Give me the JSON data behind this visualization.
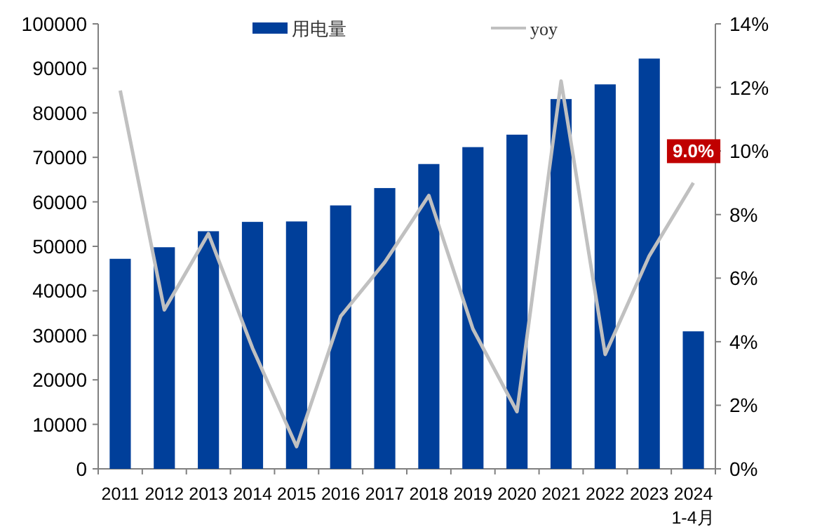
{
  "chart_data": {
    "type": "bar",
    "categories": [
      "2011",
      "2012",
      "2013",
      "2014",
      "2015",
      "2016",
      "2017",
      "2018",
      "2019",
      "2020",
      "2021",
      "2022",
      "2023",
      "2024 1-4月"
    ],
    "series": [
      {
        "name": "用电量",
        "color": "#003f9a",
        "values": [
          47200,
          49800,
          53400,
          55500,
          55600,
          59200,
          63100,
          68500,
          72300,
          75100,
          83100,
          86400,
          92200,
          30900
        ]
      },
      {
        "name": "yoy",
        "type": "line",
        "axis": "y2",
        "color": "#c0c0c0",
        "values": [
          11.9,
          5.0,
          7.4,
          3.8,
          0.7,
          4.8,
          6.5,
          8.6,
          4.4,
          1.8,
          12.2,
          3.6,
          6.7,
          9.0
        ],
        "value_labels": [
          null,
          null,
          null,
          null,
          null,
          null,
          null,
          null,
          null,
          null,
          null,
          null,
          null,
          "9.0%"
        ]
      }
    ],
    "ylim": [
      0,
      100000
    ],
    "yticks": [
      0,
      10000,
      20000,
      30000,
      40000,
      50000,
      60000,
      70000,
      80000,
      90000,
      100000
    ],
    "y2lim": [
      0,
      14
    ],
    "y2ticks": [
      {
        "value": 0,
        "label": "0%"
      },
      {
        "value": 2,
        "label": "2%"
      },
      {
        "value": 4,
        "label": "4%"
      },
      {
        "value": 6,
        "label": "6%"
      },
      {
        "value": 8,
        "label": "8%"
      },
      {
        "value": 10,
        "label": "10%"
      },
      {
        "value": 12,
        "label": "12%"
      },
      {
        "value": 14,
        "label": "14%"
      }
    ],
    "legend": "top",
    "grid": false
  }
}
